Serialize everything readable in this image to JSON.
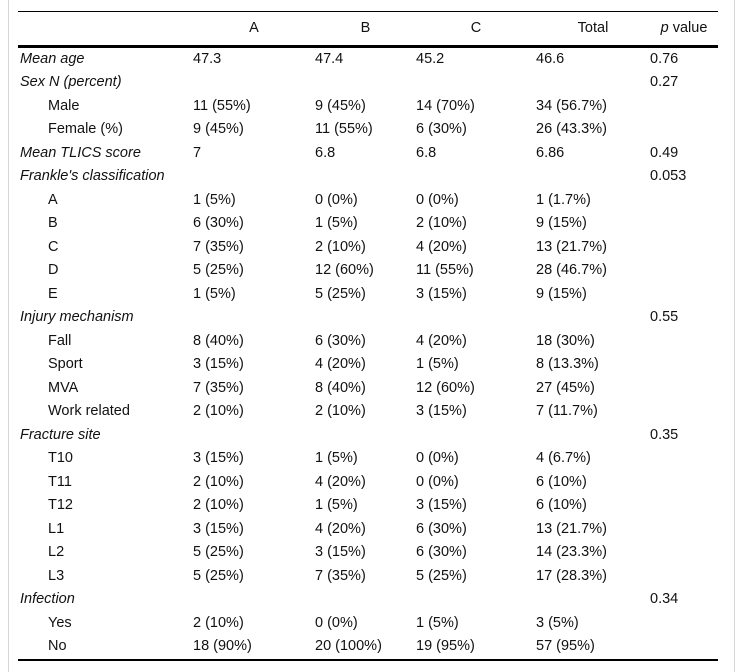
{
  "page": {
    "background_color": "#ffffff",
    "rule_color": "#000000",
    "edge_line_color": "#d6d6d6"
  },
  "table": {
    "columns": [
      "",
      "A",
      "B",
      "C",
      "Total"
    ],
    "p_value_header": {
      "p": "p",
      "rest": "value"
    },
    "rows": [
      {
        "label": "Mean age",
        "style": "section",
        "values": [
          "47.3",
          "47.4",
          "45.2",
          "46.6",
          "0.76"
        ]
      },
      {
        "label": "Sex N (percent)",
        "style": "section",
        "values": [
          "",
          "",
          "",
          "",
          "0.27"
        ]
      },
      {
        "label": "Male",
        "style": "item",
        "values": [
          "11 (55%)",
          "9 (45%)",
          "14 (70%)",
          "34 (56.7%)",
          ""
        ]
      },
      {
        "label": "Female (%)",
        "style": "item",
        "values": [
          "9 (45%)",
          "11 (55%)",
          "6 (30%)",
          "26 (43.3%)",
          ""
        ]
      },
      {
        "label": "Mean TLICS score",
        "style": "section",
        "values": [
          "7",
          "6.8",
          "6.8",
          "6.86",
          "0.49"
        ]
      },
      {
        "label": "Frankle's classification",
        "style": "section",
        "values": [
          "",
          "",
          "",
          "",
          "0.053"
        ]
      },
      {
        "label": "A",
        "style": "item",
        "values": [
          "1 (5%)",
          "0 (0%)",
          "0 (0%)",
          "1 (1.7%)",
          ""
        ]
      },
      {
        "label": "B",
        "style": "item",
        "values": [
          "6 (30%)",
          "1 (5%)",
          "2 (10%)",
          "9 (15%)",
          ""
        ]
      },
      {
        "label": "C",
        "style": "item",
        "values": [
          "7 (35%)",
          "2 (10%)",
          "4 (20%)",
          "13 (21.7%)",
          ""
        ]
      },
      {
        "label": "D",
        "style": "item",
        "values": [
          "5 (25%)",
          "12 (60%)",
          "11 (55%)",
          "28 (46.7%)",
          ""
        ]
      },
      {
        "label": "E",
        "style": "item",
        "values": [
          "1 (5%)",
          "5 (25%)",
          "3 (15%)",
          "9 (15%)",
          ""
        ]
      },
      {
        "label": "Injury mechanism",
        "style": "section",
        "values": [
          "",
          "",
          "",
          "",
          "0.55"
        ]
      },
      {
        "label": "Fall",
        "style": "item",
        "values": [
          "8 (40%)",
          "6 (30%)",
          "4 (20%)",
          "18 (30%)",
          ""
        ]
      },
      {
        "label": "Sport",
        "style": "item",
        "values": [
          "3 (15%)",
          "4 (20%)",
          "1 (5%)",
          "8 (13.3%)",
          ""
        ]
      },
      {
        "label": "MVA",
        "style": "item",
        "values": [
          "7 (35%)",
          "8 (40%)",
          "12 (60%)",
          "27 (45%)",
          ""
        ]
      },
      {
        "label": "Work related",
        "style": "item",
        "values": [
          "2 (10%)",
          "2 (10%)",
          "3 (15%)",
          "7 (11.7%)",
          ""
        ]
      },
      {
        "label": "Fracture site",
        "style": "section",
        "values": [
          "",
          "",
          "",
          "",
          "0.35"
        ]
      },
      {
        "label": "T10",
        "style": "item",
        "values": [
          "3 (15%)",
          "1 (5%)",
          "0 (0%)",
          "4 (6.7%)",
          ""
        ]
      },
      {
        "label": "T11",
        "style": "item",
        "values": [
          "2 (10%)",
          "4 (20%)",
          "0 (0%)",
          "6 (10%)",
          ""
        ]
      },
      {
        "label": "T12",
        "style": "item",
        "values": [
          "2 (10%)",
          "1 (5%)",
          "3 (15%)",
          "6 (10%)",
          ""
        ]
      },
      {
        "label": "L1",
        "style": "item",
        "values": [
          "3 (15%)",
          "4 (20%)",
          "6 (30%)",
          "13 (21.7%)",
          ""
        ]
      },
      {
        "label": "L2",
        "style": "item",
        "values": [
          "5 (25%)",
          "3 (15%)",
          "6 (30%)",
          "14 (23.3%)",
          ""
        ]
      },
      {
        "label": "L3",
        "style": "item",
        "values": [
          "5 (25%)",
          "7 (35%)",
          "5 (25%)",
          "17 (28.3%)",
          ""
        ]
      },
      {
        "label": "Infection",
        "style": "section",
        "values": [
          "",
          "",
          "",
          "",
          "0.34"
        ]
      },
      {
        "label": "Yes",
        "style": "item",
        "values": [
          "2 (10%)",
          "0 (0%)",
          "1 (5%)",
          "3 (5%)",
          ""
        ]
      },
      {
        "label": "No",
        "style": "item",
        "values": [
          "18 (90%)",
          "20 (100%)",
          "19 (95%)",
          "57 (95%)",
          ""
        ]
      }
    ]
  }
}
